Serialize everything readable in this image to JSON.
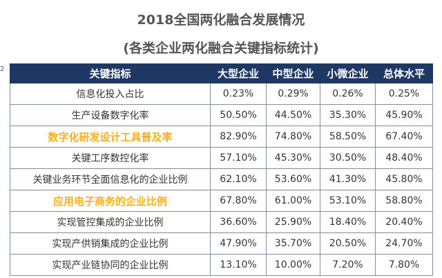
{
  "title": "2018全国两化融合发展情况",
  "subtitle": "(各类企业两化融合关键指标统计)",
  "edge_mark": "2",
  "colors": {
    "header_bg": "#1f3763",
    "header_text": "#ffffff",
    "highlight_text": "#f5b01e",
    "title_text": "#555555"
  },
  "table": {
    "headers": [
      "关键指标",
      "大型企业",
      "中型企业",
      "小微企业",
      "总体水平"
    ],
    "rows": [
      {
        "label": "信息化投入占比",
        "values": [
          "0.23%",
          "0.29%",
          "0.26%",
          "0.25%"
        ],
        "highlight": false
      },
      {
        "label": "生产设备数字化率",
        "values": [
          "50.50%",
          "44.50%",
          "35.30%",
          "45.90%"
        ],
        "highlight": false
      },
      {
        "label": "数字化研发设计工具普及率",
        "values": [
          "82.90%",
          "74.80%",
          "58.50%",
          "67.40%"
        ],
        "highlight": true
      },
      {
        "label": "关键工序数控化率",
        "values": [
          "57.10%",
          "45.30%",
          "30.50%",
          "48.40%"
        ],
        "highlight": false
      },
      {
        "label": "关键业务环节全面信息化的企业比例",
        "values": [
          "62.10%",
          "53.60%",
          "41.30%",
          "45.80%"
        ],
        "highlight": false
      },
      {
        "label": "应用电子商务的企业比例",
        "values": [
          "67.80%",
          "61.00%",
          "53.10%",
          "58.80%"
        ],
        "highlight": true
      },
      {
        "label": "实现管控集成的企业比例",
        "values": [
          "36.60%",
          "25.90%",
          "18.40%",
          "20.40%"
        ],
        "highlight": false
      },
      {
        "label": "实现产供销集成的企业比例",
        "values": [
          "47.90%",
          "35.70%",
          "20.50%",
          "24.70%"
        ],
        "highlight": false
      },
      {
        "label": "实现产业链协同的企业比例",
        "values": [
          "13.10%",
          "10.00%",
          "7.20%",
          "7.80%"
        ],
        "highlight": false
      }
    ]
  }
}
